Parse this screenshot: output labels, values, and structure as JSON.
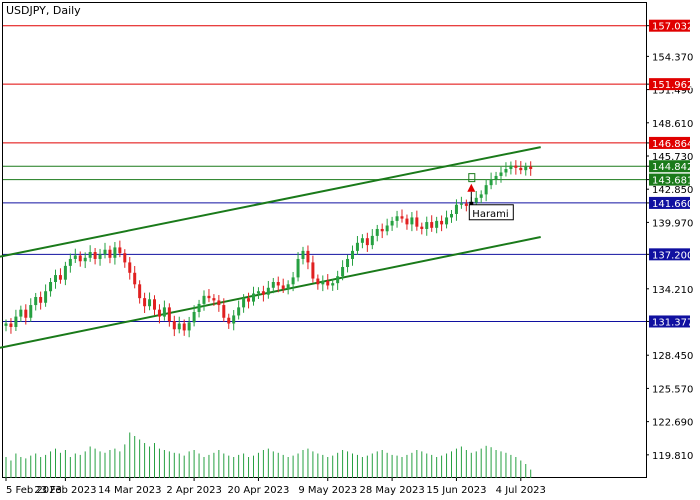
{
  "chart_data": {
    "type": "candlestick",
    "title": "USDJPY, Daily",
    "ylim": [
      117.8,
      159.0
    ],
    "y_ticks": [
      "119.810",
      "122.690",
      "125.570",
      "128.450",
      "131.377",
      "134.210",
      "137.200",
      "139.970",
      "141.660",
      "142.850",
      "143.681",
      "144.842",
      "145.730",
      "146.864",
      "148.610",
      "151.490",
      "151.962",
      "154.370",
      "157.032"
    ],
    "x_ticks": [
      {
        "label": "5 Feb 2023",
        "i": 0
      },
      {
        "label": "23 Feb 2023",
        "i": 12
      },
      {
        "label": "14 Mar 2023",
        "i": 25
      },
      {
        "label": "2 Apr 2023",
        "i": 38
      },
      {
        "label": "20 Apr 2023",
        "i": 51
      },
      {
        "label": "9 May 2023",
        "i": 65
      },
      {
        "label": "28 May 2023",
        "i": 78
      },
      {
        "label": "15 Jun 2023",
        "i": 91
      },
      {
        "label": "4 Jul 2023",
        "i": 104
      }
    ],
    "n_bars": 107,
    "closes": [
      131.2,
      130.9,
      131.8,
      132.4,
      131.7,
      132.8,
      133.5,
      133.0,
      134.0,
      134.8,
      135.4,
      135.0,
      136.2,
      136.8,
      137.1,
      136.6,
      136.9,
      137.4,
      136.8,
      137.2,
      137.6,
      136.9,
      137.8,
      137.3,
      136.5,
      135.6,
      134.6,
      133.4,
      132.7,
      133.3,
      132.4,
      131.8,
      132.6,
      131.4,
      130.7,
      131.2,
      130.6,
      131.3,
      132.2,
      132.9,
      133.6,
      133.4,
      133.2,
      132.8,
      131.7,
      131.2,
      131.9,
      132.6,
      133.4,
      133.1,
      133.8,
      134.0,
      133.7,
      134.3,
      134.8,
      134.5,
      134.2,
      134.6,
      135.2,
      136.8,
      137.5,
      136.5,
      135.1,
      134.6,
      134.9,
      134.5,
      134.7,
      135.3,
      136.1,
      136.8,
      137.5,
      138.2,
      138.6,
      138.0,
      138.8,
      139.4,
      139.2,
      139.7,
      140.1,
      140.5,
      140.3,
      139.8,
      140.4,
      139.6,
      139.4,
      140.0,
      139.5,
      140.1,
      139.8,
      140.4,
      140.7,
      141.5,
      141.6,
      141.4,
      141.7,
      142.1,
      142.4,
      143.2,
      143.7,
      144.0,
      144.3,
      144.6,
      144.9,
      144.7,
      144.5,
      144.8,
      144.6
    ],
    "volumes": [
      0.3,
      0.25,
      0.35,
      0.3,
      0.28,
      0.32,
      0.35,
      0.3,
      0.33,
      0.38,
      0.42,
      0.36,
      0.4,
      0.3,
      0.35,
      0.33,
      0.38,
      0.45,
      0.42,
      0.38,
      0.36,
      0.4,
      0.42,
      0.38,
      0.48,
      0.65,
      0.6,
      0.55,
      0.5,
      0.45,
      0.5,
      0.42,
      0.4,
      0.38,
      0.36,
      0.35,
      0.32,
      0.38,
      0.4,
      0.35,
      0.3,
      0.33,
      0.36,
      0.4,
      0.35,
      0.32,
      0.3,
      0.33,
      0.35,
      0.3,
      0.32,
      0.36,
      0.4,
      0.42,
      0.38,
      0.36,
      0.33,
      0.3,
      0.32,
      0.35,
      0.4,
      0.42,
      0.38,
      0.35,
      0.33,
      0.3,
      0.32,
      0.36,
      0.4,
      0.38,
      0.35,
      0.33,
      0.3,
      0.32,
      0.35,
      0.38,
      0.4,
      0.36,
      0.33,
      0.32,
      0.3,
      0.33,
      0.36,
      0.4,
      0.38,
      0.35,
      0.33,
      0.3,
      0.32,
      0.35,
      0.38,
      0.42,
      0.45,
      0.4,
      0.36,
      0.38,
      0.42,
      0.46,
      0.44,
      0.4,
      0.38,
      0.36,
      0.33,
      0.3,
      0.25,
      0.2,
      0.12
    ],
    "horizontal_levels": [
      {
        "value": 157.032,
        "color": "#e00000",
        "label": "157.032"
      },
      {
        "value": 151.962,
        "color": "#e00000",
        "label": "151.962"
      },
      {
        "value": 146.864,
        "color": "#e00000",
        "label": "146.864"
      },
      {
        "value": 144.842,
        "color": "#1a7a1a",
        "label": "144.842"
      },
      {
        "value": 143.681,
        "color": "#1a7a1a",
        "label": "143.681"
      },
      {
        "value": 141.66,
        "color": "#1010a0",
        "label": "141.660"
      },
      {
        "value": 137.2,
        "color": "#1010a0",
        "label": "137.200"
      },
      {
        "value": 131.377,
        "color": "#1010a0",
        "label": "131.377"
      }
    ],
    "channel_lines": [
      {
        "from": {
          "i": 0,
          "y": 137.0
        },
        "to": {
          "i": 106,
          "y": 146.5
        },
        "color": "#1a7a1a"
      },
      {
        "from": {
          "i": 0,
          "y": 129.1
        },
        "to": {
          "i": 106,
          "y": 138.7
        },
        "color": "#1a7a1a"
      }
    ],
    "annotation": {
      "text": "Harami",
      "i": 94,
      "y": 142.8,
      "arrow_color": "#e00000"
    },
    "colors": {
      "up": "#26a041",
      "down": "#e02020",
      "volume": "#26a041"
    }
  }
}
